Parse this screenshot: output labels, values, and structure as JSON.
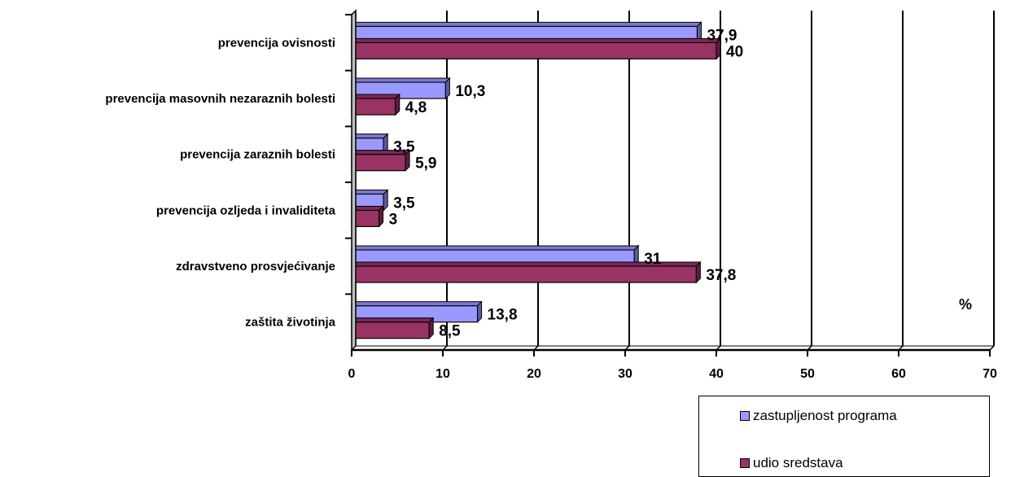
{
  "chart_data": {
    "type": "bar",
    "orientation": "horizontal",
    "unit": "%",
    "categories": [
      "prevencija ovisnosti",
      "prevencija masovnih  nezaraznih bolesti",
      "prevencija zaraznih bolesti",
      "prevencija ozljeda i  invaliditeta",
      "zdravstveno prosvjećivanje",
      "zaštita životinja"
    ],
    "series": [
      {
        "name": "zastupljenost programa",
        "color": "#9999ff",
        "values": [
          37.9,
          10.3,
          3.5,
          3.5,
          31,
          13.8
        ],
        "labels": [
          "37,9",
          "10,3",
          "3,5",
          "3,5",
          "31",
          "13,8"
        ]
      },
      {
        "name": "udio sredstava",
        "color": "#993366",
        "values": [
          40,
          4.8,
          5.9,
          3,
          37.8,
          8.5
        ],
        "labels": [
          "40",
          "4,8",
          "5,9",
          "3",
          "37,8",
          "8,5"
        ]
      }
    ],
    "xlim": [
      0,
      70
    ],
    "xticks": [
      "0",
      "10",
      "20",
      "30",
      "40",
      "50",
      "60",
      "70"
    ],
    "grid": true,
    "legend_position": "bottom-right"
  }
}
